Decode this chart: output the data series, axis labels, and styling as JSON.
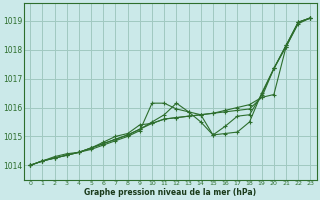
{
  "title": "Graphe pression niveau de la mer (hPa)",
  "bg_color": "#cbe9e9",
  "grid_color": "#a0c8c0",
  "line_color": "#2d6e2d",
  "xlim": [
    -0.5,
    23.5
  ],
  "ylim": [
    1013.5,
    1019.6
  ],
  "yticks": [
    1014,
    1015,
    1016,
    1017,
    1018,
    1019
  ],
  "xticks": [
    0,
    1,
    2,
    3,
    4,
    5,
    6,
    7,
    8,
    9,
    10,
    11,
    12,
    13,
    14,
    15,
    16,
    17,
    18,
    19,
    20,
    21,
    22,
    23
  ],
  "series": [
    {
      "x": [
        0,
        1,
        2,
        3,
        4,
        5,
        6,
        7,
        8,
        9,
        10,
        11,
        12,
        13,
        14,
        15,
        16,
        17,
        18,
        19,
        20,
        21,
        22,
        23
      ],
      "y": [
        1014.0,
        1014.15,
        1014.25,
        1014.35,
        1014.45,
        1014.55,
        1014.7,
        1014.85,
        1015.0,
        1015.2,
        1016.15,
        1016.15,
        1015.95,
        1015.85,
        1015.75,
        1015.05,
        1015.1,
        1015.15,
        1015.5,
        1016.5,
        1017.35,
        1018.15,
        1018.95,
        1019.1
      ]
    },
    {
      "x": [
        0,
        1,
        2,
        3,
        4,
        5,
        6,
        7,
        8,
        9,
        10,
        11,
        12,
        13,
        14,
        15,
        16,
        17,
        18,
        19,
        20,
        21,
        22,
        23
      ],
      "y": [
        1014.0,
        1014.15,
        1014.25,
        1014.35,
        1014.45,
        1014.6,
        1014.75,
        1014.9,
        1015.05,
        1015.25,
        1015.5,
        1015.75,
        1016.15,
        1015.85,
        1015.5,
        1015.05,
        1015.35,
        1015.7,
        1015.75,
        1016.45,
        1017.35,
        1018.15,
        1018.95,
        1019.1
      ]
    },
    {
      "x": [
        0,
        1,
        2,
        3,
        4,
        5,
        6,
        7,
        8,
        9,
        10,
        11,
        12,
        13,
        14,
        15,
        16,
        17,
        18,
        19,
        20,
        21,
        22,
        23
      ],
      "y": [
        1014.0,
        1014.15,
        1014.25,
        1014.35,
        1014.45,
        1014.6,
        1014.75,
        1014.9,
        1015.05,
        1015.25,
        1015.45,
        1015.6,
        1015.65,
        1015.7,
        1015.75,
        1015.8,
        1015.85,
        1015.9,
        1015.95,
        1016.35,
        1016.45,
        1018.1,
        1018.95,
        1019.1
      ]
    },
    {
      "x": [
        0,
        1,
        2,
        3,
        4,
        5,
        6,
        7,
        8,
        9,
        10,
        11,
        12,
        13,
        14,
        15,
        16,
        17,
        18,
        19,
        20,
        21,
        22,
        23
      ],
      "y": [
        1014.0,
        1014.15,
        1014.3,
        1014.4,
        1014.45,
        1014.6,
        1014.8,
        1015.0,
        1015.1,
        1015.4,
        1015.45,
        1015.6,
        1015.65,
        1015.7,
        1015.75,
        1015.8,
        1015.9,
        1016.0,
        1016.1,
        1016.35,
        1017.35,
        1018.1,
        1018.9,
        1019.1
      ]
    }
  ]
}
